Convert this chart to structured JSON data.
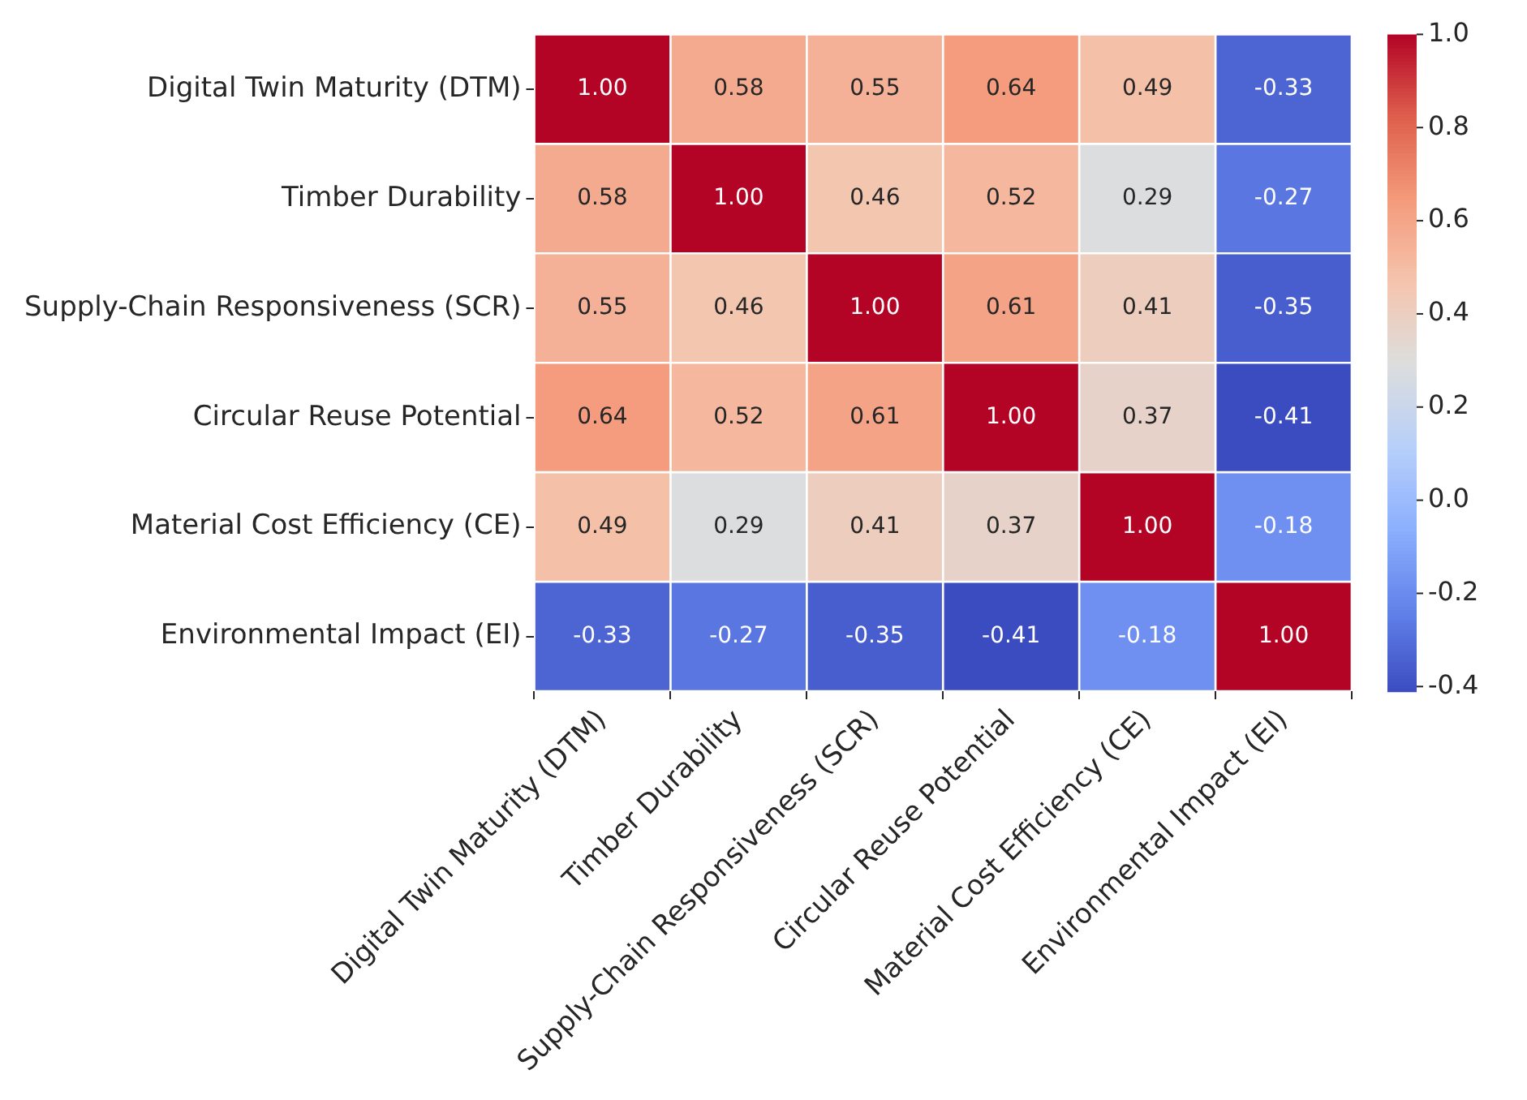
{
  "chart_data": {
    "type": "heatmap",
    "categories": [
      "Digital Twin Maturity (DTM)",
      "Timber Durability",
      "Supply-Chain Responsiveness (SCR)",
      "Circular Reuse Potential",
      "Material Cost Efficiency (CE)",
      "Environmental Impact (EI)"
    ],
    "y_categories": [
      "Digital Twin Maturity (DTM)",
      "Timber Durability",
      "Supply-Chain Responsiveness (SCR)",
      "Circular Reuse Potential",
      "Material Cost Efficiency (CE)",
      "Environmental Impact (EI)"
    ],
    "cells": [
      [
        1.0,
        0.58,
        0.55,
        0.64,
        0.49,
        -0.33
      ],
      [
        0.58,
        1.0,
        0.46,
        0.52,
        0.29,
        -0.27
      ],
      [
        0.55,
        0.46,
        1.0,
        0.61,
        0.41,
        -0.35
      ],
      [
        0.64,
        0.52,
        0.61,
        1.0,
        0.37,
        -0.41
      ],
      [
        0.49,
        0.29,
        0.41,
        0.37,
        1.0,
        -0.18
      ],
      [
        -0.33,
        -0.27,
        -0.35,
        -0.41,
        -0.18,
        1.0
      ]
    ],
    "cell_labels": [
      [
        "1.00",
        "0.58",
        "0.55",
        "0.64",
        "0.49",
        "-0.33"
      ],
      [
        "0.58",
        "1.00",
        "0.46",
        "0.52",
        "0.29",
        "-0.27"
      ],
      [
        "0.55",
        "0.46",
        "1.00",
        "0.61",
        "0.41",
        "-0.35"
      ],
      [
        "0.64",
        "0.52",
        "0.61",
        "1.00",
        "0.37",
        "-0.41"
      ],
      [
        "0.49",
        "0.29",
        "0.41",
        "0.37",
        "1.00",
        "-0.18"
      ],
      [
        "-0.33",
        "-0.27",
        "-0.35",
        "-0.41",
        "-0.18",
        "1.00"
      ]
    ],
    "clim": [
      -0.41,
      1.0
    ],
    "cticks": [
      -0.4,
      -0.2,
      {
        "value": 0,
        "label": "0.0"
      },
      0.2,
      0.4,
      0.6,
      0.8,
      {
        "value": 1,
        "label": "1.0"
      }
    ]
  }
}
